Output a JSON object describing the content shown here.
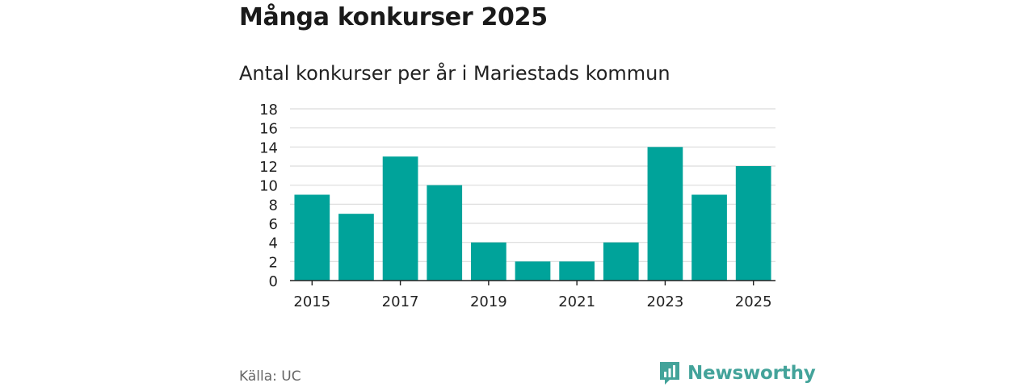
{
  "header": {
    "title": "Många konkurser 2025",
    "subtitle": "Antal konkurser per år i Mariestads kommun"
  },
  "footer": {
    "source": "Källa: UC",
    "brand": "Newsworthy",
    "brand_icon": "newsworthy-logo-icon",
    "brand_color": "#43a39a"
  },
  "chart_data": {
    "type": "bar",
    "title": "Många konkurser 2025",
    "subtitle": "Antal konkurser per år i Mariestads kommun",
    "categories": [
      "2015",
      "2016",
      "2017",
      "2018",
      "2019",
      "2020",
      "2021",
      "2022",
      "2023",
      "2024",
      "2025"
    ],
    "values": [
      9,
      7,
      13,
      10,
      4,
      2,
      2,
      4,
      14,
      9,
      12
    ],
    "x_tick_labels": [
      "2015",
      "2017",
      "2019",
      "2021",
      "2023",
      "2025"
    ],
    "y_ticks": [
      0,
      2,
      4,
      6,
      8,
      10,
      12,
      14,
      16,
      18
    ],
    "ylim": [
      0,
      18
    ],
    "xlabel": "",
    "ylabel": "",
    "grid": true,
    "bar_color": "#00a39a"
  }
}
